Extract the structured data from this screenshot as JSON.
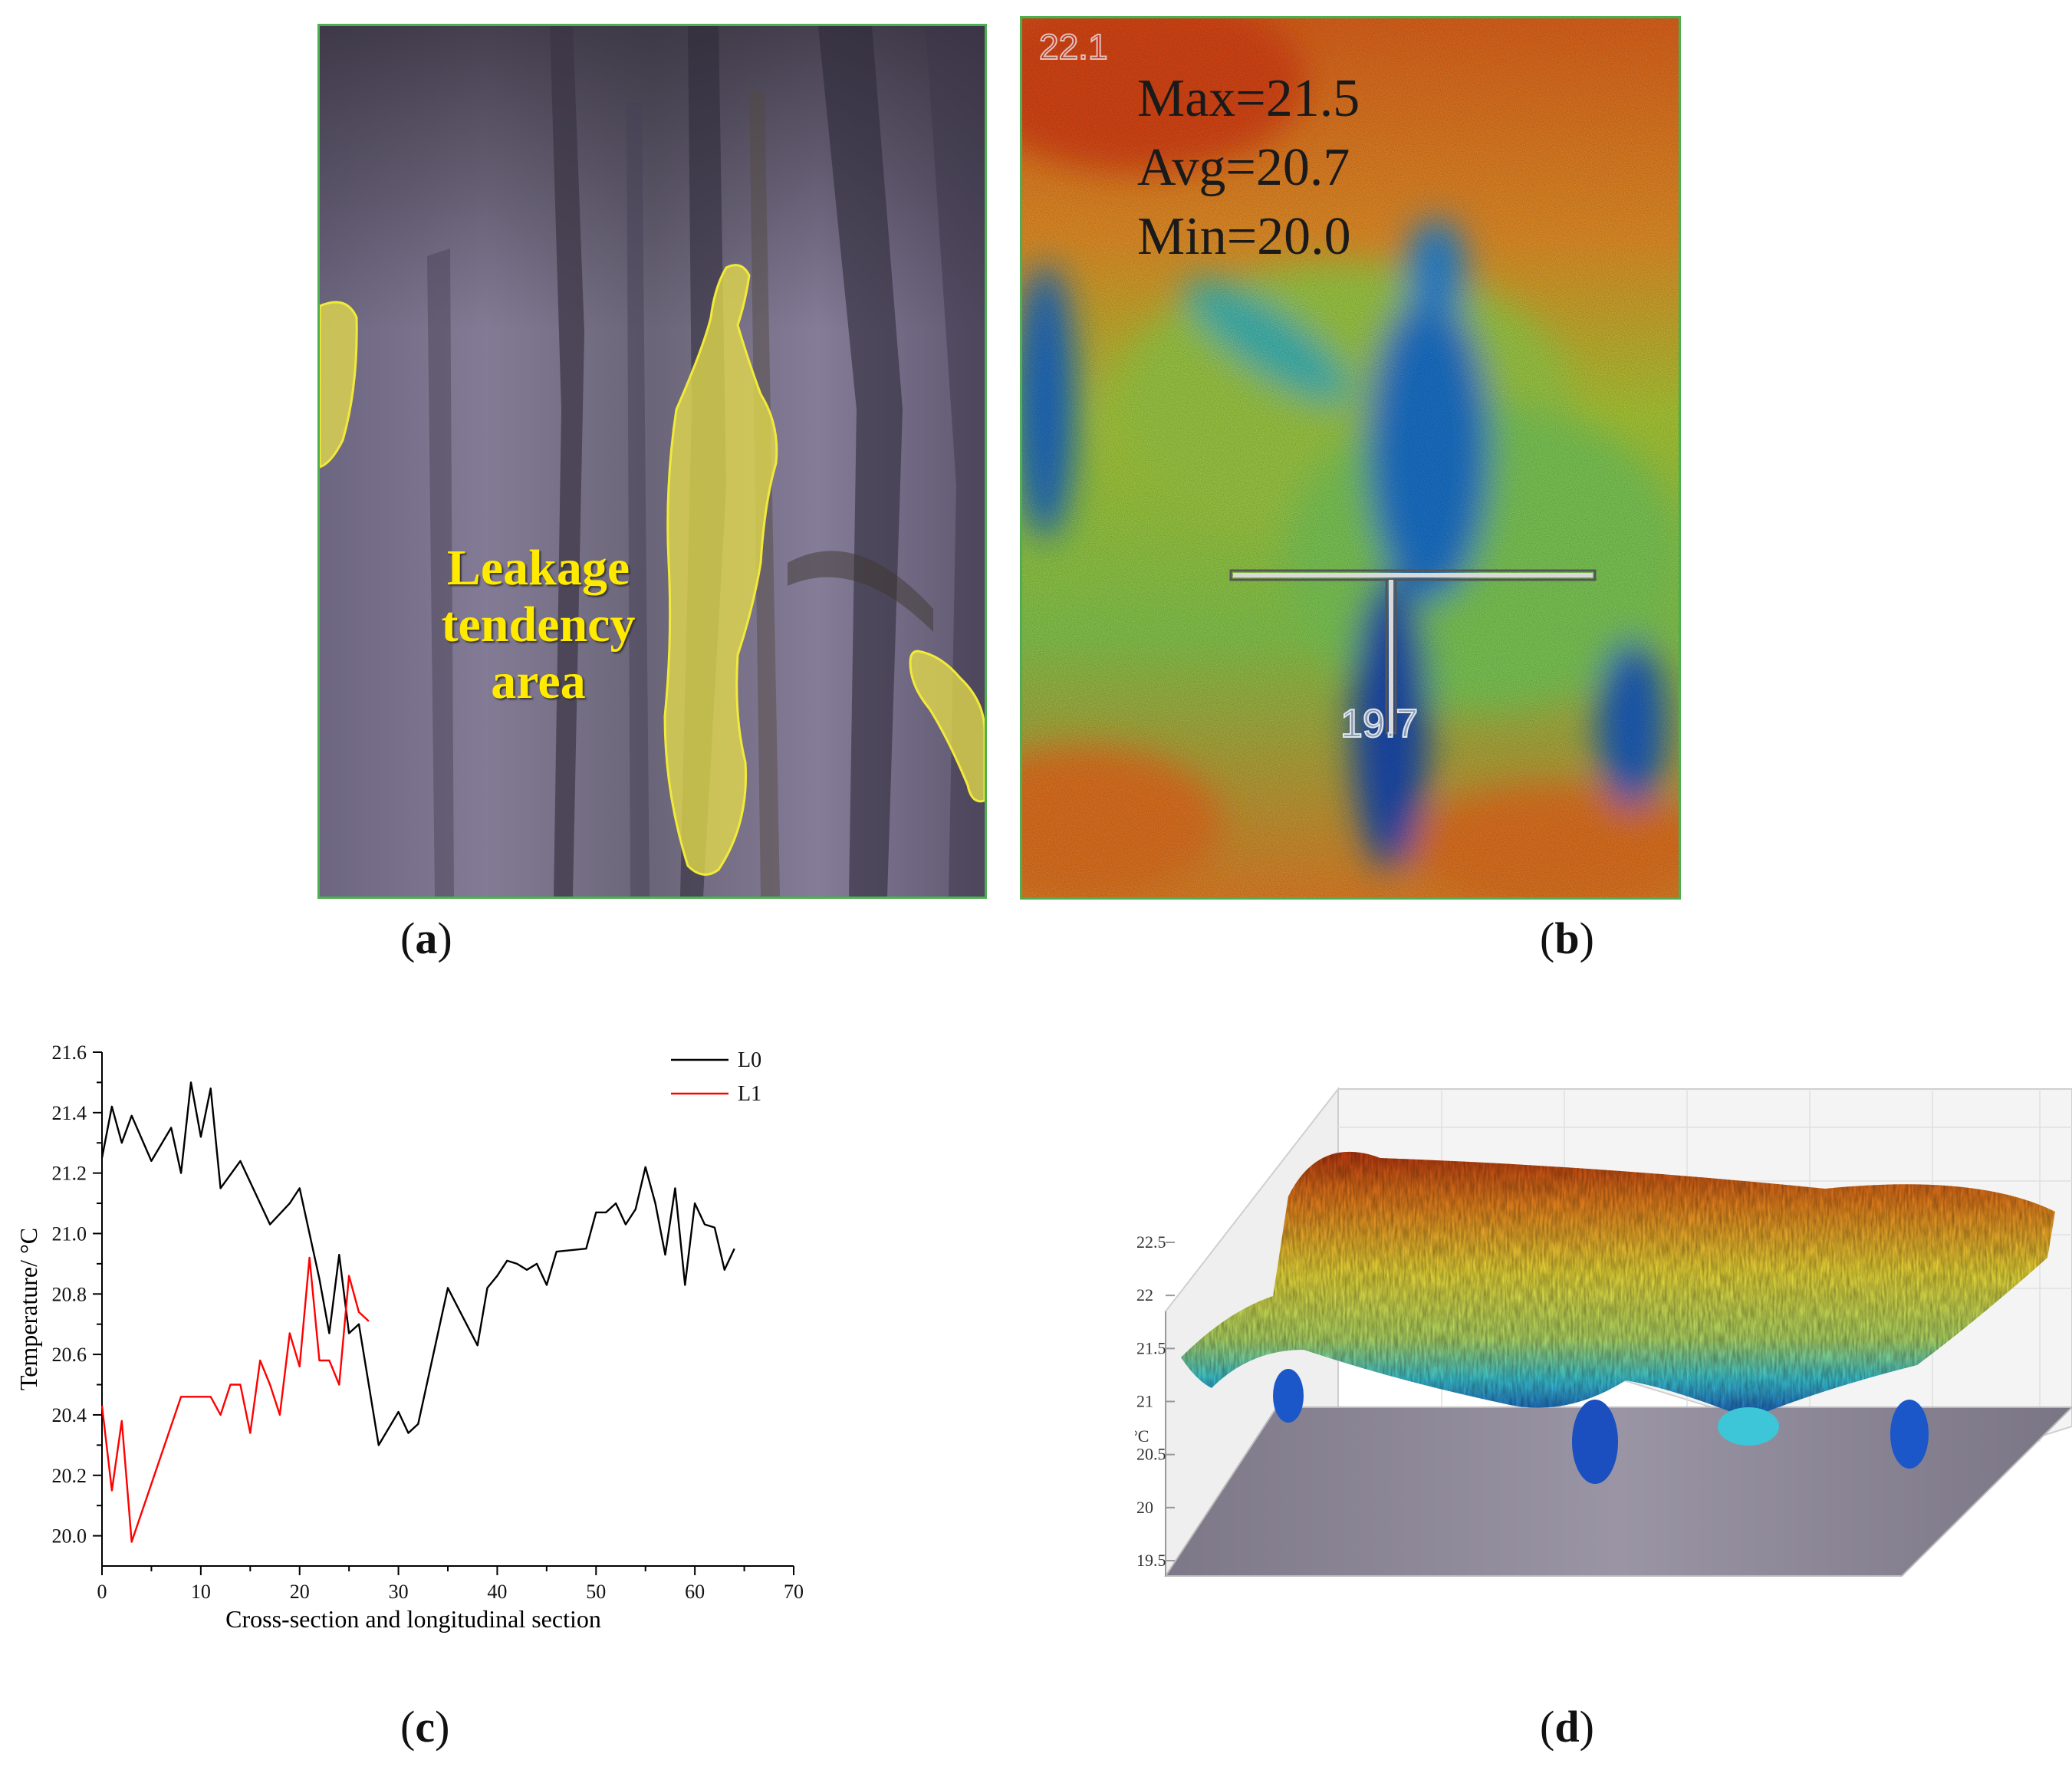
{
  "panels": {
    "a": {
      "caption_letter": "a",
      "annotation": [
        "Leakage",
        "tendency",
        "area"
      ],
      "highlight_color": "#e8e04a"
    },
    "b": {
      "caption_letter": "b",
      "stats": [
        "Max=21.5",
        "Avg=20.7",
        "Min=20.0"
      ],
      "corner_value": "22.1",
      "spot_value": "19.7"
    },
    "c": {
      "caption_letter": "c"
    },
    "d": {
      "caption_letter": "d"
    }
  },
  "chart_data": [
    {
      "id": "c",
      "type": "line",
      "xlabel": "Cross-section and longitudinal section",
      "ylabel": "Temperature/ °C",
      "xlim": [
        0,
        70
      ],
      "ylim": [
        19.9,
        21.6
      ],
      "xticks": [
        0,
        10,
        20,
        30,
        40,
        50,
        60,
        70
      ],
      "yticks": [
        20.0,
        20.2,
        20.4,
        20.6,
        20.8,
        21.0,
        21.2,
        21.4,
        21.6
      ],
      "legend_position": "top-right",
      "series": [
        {
          "name": "L0",
          "color": "#000000",
          "x": [
            0,
            1,
            2,
            3,
            5,
            7,
            8,
            9,
            10,
            11,
            12,
            14,
            17,
            19,
            20,
            22,
            23,
            24,
            25,
            26,
            28,
            30,
            31,
            32,
            35,
            38,
            39,
            40,
            41,
            42,
            43,
            44,
            45,
            46,
            49,
            50,
            51,
            52,
            53,
            54,
            55,
            56,
            57,
            58,
            59,
            60,
            61,
            62,
            63,
            64
          ],
          "y": [
            21.25,
            21.42,
            21.3,
            21.39,
            21.24,
            21.35,
            21.2,
            21.5,
            21.32,
            21.48,
            21.15,
            21.24,
            21.03,
            21.1,
            21.15,
            20.85,
            20.67,
            20.93,
            20.67,
            20.7,
            20.3,
            20.41,
            20.34,
            20.37,
            20.82,
            20.63,
            20.82,
            20.86,
            20.91,
            20.9,
            20.88,
            20.9,
            20.83,
            20.94,
            20.95,
            21.07,
            21.07,
            21.1,
            21.03,
            21.08,
            21.22,
            21.1,
            20.93,
            21.15,
            20.83,
            21.1,
            21.03,
            21.02,
            20.88,
            20.95
          ]
        },
        {
          "name": "L1",
          "color": "#ff0000",
          "x": [
            0,
            1,
            2,
            3,
            8,
            11,
            12,
            13,
            14,
            15,
            16,
            17,
            18,
            19,
            20,
            21,
            22,
            23,
            24,
            25,
            26,
            27
          ],
          "y": [
            20.43,
            20.15,
            20.38,
            19.98,
            20.46,
            20.46,
            20.4,
            20.5,
            20.5,
            20.34,
            20.58,
            20.5,
            20.4,
            20.67,
            20.56,
            20.92,
            20.58,
            20.58,
            20.5,
            20.86,
            20.74,
            20.71
          ]
        }
      ]
    },
    {
      "id": "d",
      "type": "surface",
      "axis_unit_label": "°C",
      "zticks": [
        "22.5",
        "22",
        "21.5",
        "21",
        "20.5",
        "20",
        "19.5"
      ]
    }
  ]
}
